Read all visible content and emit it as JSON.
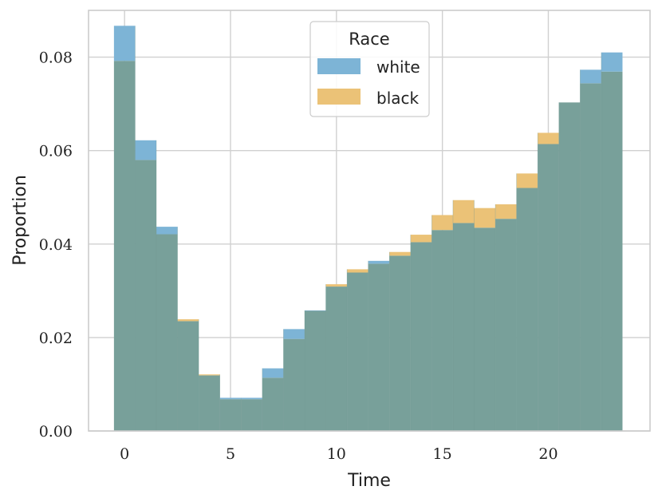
{
  "chart_data": {
    "type": "bar",
    "xlabel": "Time",
    "ylabel": "Proportion",
    "xlim": [
      -1.7,
      24.8
    ],
    "ylim": [
      0,
      0.09
    ],
    "xticks": [
      0,
      5,
      10,
      15,
      20
    ],
    "xtick_labels": [
      "0",
      "5",
      "10",
      "15",
      "20"
    ],
    "yticks": [
      0,
      0.02,
      0.04,
      0.06,
      0.08
    ],
    "ytick_labels": [
      "0.00",
      "0.02",
      "0.04",
      "0.06",
      "0.08"
    ],
    "grid": true,
    "legend": {
      "title": "Race",
      "position": "top-center"
    },
    "bin_edges": [
      -0.5,
      0.5,
      1.5,
      2.5,
      3.5,
      4.5,
      5.5,
      6.5,
      7.5,
      8.5,
      9.5,
      10.5,
      11.5,
      12.5,
      13.5,
      14.5,
      15.5,
      16.5,
      17.5,
      18.5,
      19.5,
      20.5,
      21.5,
      22.5,
      23.5
    ],
    "series": [
      {
        "name": "white",
        "color": "#7db4d6",
        "values": [
          0.0867,
          0.0622,
          0.0437,
          0.0235,
          0.0119,
          0.0071,
          0.0071,
          0.0134,
          0.0218,
          0.0258,
          0.0309,
          0.0339,
          0.0364,
          0.0375,
          0.0404,
          0.043,
          0.0445,
          0.0435,
          0.0454,
          0.052,
          0.0614,
          0.0703,
          0.0773,
          0.081
        ]
      },
      {
        "name": "black",
        "color": "#ebc277",
        "values": [
          0.0792,
          0.058,
          0.0421,
          0.0239,
          0.0121,
          0.0068,
          0.0068,
          0.0114,
          0.0197,
          0.0257,
          0.0314,
          0.0346,
          0.0358,
          0.0383,
          0.042,
          0.0462,
          0.0494,
          0.0477,
          0.0485,
          0.0551,
          0.0638,
          0.0703,
          0.0744,
          0.0769
        ]
      }
    ],
    "overlap_color": "#78a09a"
  }
}
